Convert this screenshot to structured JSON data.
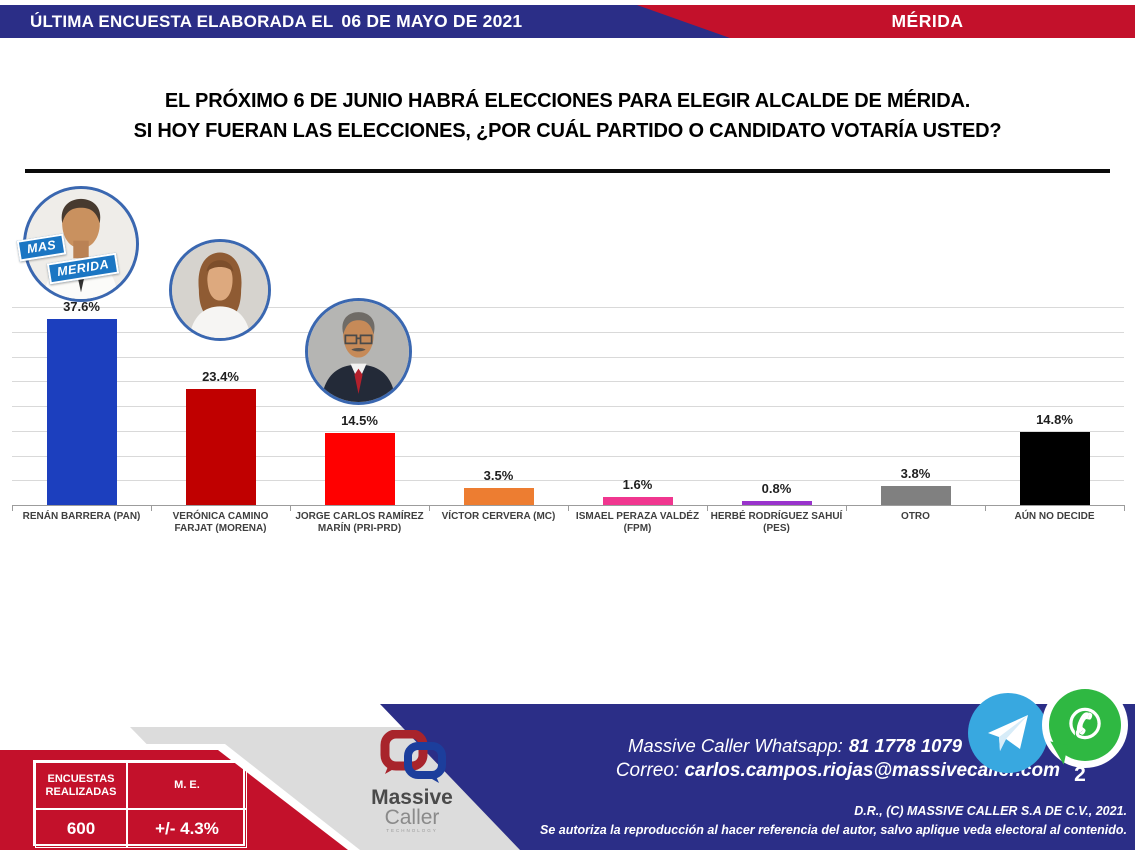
{
  "colors": {
    "header-blue": "#2b2e87",
    "header-red": "#c3112b",
    "footer-red": "#c3112b",
    "footer-blue": "#2b2e87",
    "footer-gray": "#dcdcdc",
    "telegram-blue": "#38a8e0",
    "whatsapp-green": "#2fb842",
    "grid-line": "#d9d9d9",
    "axis-line": "#9c9c9c"
  },
  "header": {
    "left_label": "ÚLTIMA ENCUESTA ELABORADA EL",
    "date": "06 DE MAYO DE 2021",
    "region": "MÉRIDA"
  },
  "question": {
    "line1": "EL PRÓXIMO 6 DE JUNIO HABRÁ ELECCIONES PARA ELEGIR ALCALDE DE MÉRIDA.",
    "line2": "SI HOY FUERAN LAS ELECCIONES, ¿POR CUÁL PARTIDO O CANDIDATO VOTARÍA USTED?"
  },
  "chart_data": {
    "type": "bar",
    "title": "",
    "xlabel": "",
    "ylabel": "",
    "categories": [
      "RENÁN BARRERA (PAN)",
      "VERÓNICA CAMINO FARJAT (MORENA)",
      "JORGE CARLOS RAMÍREZ MARÍN (PRI-PRD)",
      "VÍCTOR CERVERA (MC)",
      "ISMAEL PERAZA VALDÉZ (FPM)",
      "HERBÉ RODRÍGUEZ SAHUÍ (PES)",
      "OTRO",
      "AÚN NO DECIDE"
    ],
    "values": [
      37.6,
      23.4,
      14.5,
      3.5,
      1.6,
      0.8,
      3.8,
      14.8
    ],
    "value_labels": [
      "37.6%",
      "23.4%",
      "14.5%",
      "3.5%",
      "1.6%",
      "0.8%",
      "3.8%",
      "14.8%"
    ],
    "bar_colors": [
      "#1c3fbe",
      "#c00000",
      "#ff0000",
      "#ed7d31",
      "#f0368f",
      "#9933cc",
      "#808080",
      "#000000"
    ],
    "ylim": [
      0,
      40
    ],
    "gridline_step": 5,
    "grid": true,
    "legend": false
  },
  "candidates": [
    {
      "name": "Renán Barrera",
      "badge_line1": "MAS",
      "badge_line2": "MERIDA"
    },
    {
      "name": "Verónica Camino Farjat"
    },
    {
      "name": "Jorge Carlos Ramírez Marín"
    }
  ],
  "footer": {
    "stats_table": {
      "header1": "ENCUESTAS REALIZADAS",
      "header2": "M. E.",
      "value1": "600",
      "value2": "+/- 4.3%"
    },
    "logo": {
      "line1": "Massive",
      "line2": "Caller",
      "line3": "TECHNOLOGY"
    },
    "whatsapp_label": "Massive Caller Whatsapp:",
    "whatsapp_number": "81 1778 1079",
    "email_label": "Correo:",
    "email": "carlos.campos.riojas@massivecaller.com",
    "page_number": "2",
    "copyright_line1": "D.R., (C) MASSIVE CALLER S.A DE C.V., 2021.",
    "copyright_line2": "Se autoriza la reproducción al hacer referencia del autor, salvo aplique veda electoral al contenido."
  },
  "icons": {
    "telegram": "paper-plane",
    "whatsapp": "phone-handset"
  }
}
